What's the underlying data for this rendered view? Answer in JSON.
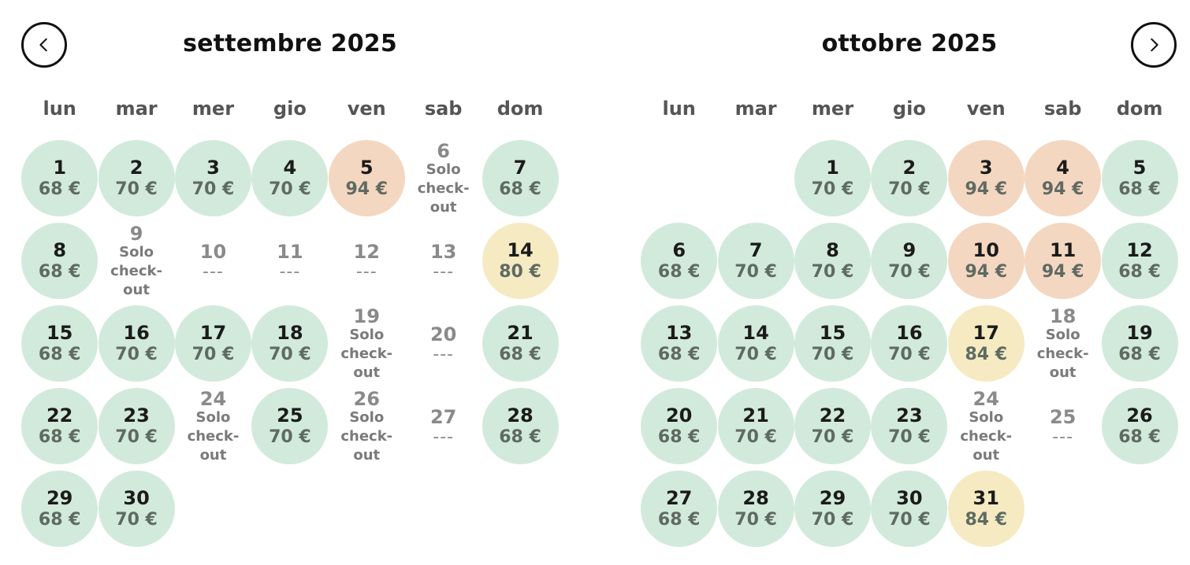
{
  "nav": {
    "prev_icon": "chevron-left-icon",
    "next_icon": "chevron-right-icon"
  },
  "colors": {
    "available": "#d2eadb",
    "high": "#f4d7c0",
    "medium": "#f6eac2"
  },
  "checkout_lines": [
    "Solo",
    "check-",
    "out"
  ],
  "months": [
    {
      "title": "settembre 2025",
      "weekdays": [
        "lun",
        "mar",
        "mer",
        "gio",
        "ven",
        "sab",
        "dom"
      ],
      "offset": 0,
      "days": [
        {
          "d": "1",
          "p": "68 €",
          "s": "green"
        },
        {
          "d": "2",
          "p": "70 €",
          "s": "green"
        },
        {
          "d": "3",
          "p": "70 €",
          "s": "green"
        },
        {
          "d": "4",
          "p": "70 €",
          "s": "green"
        },
        {
          "d": "5",
          "p": "94 €",
          "s": "orange"
        },
        {
          "d": "6",
          "s": "checkout"
        },
        {
          "d": "7",
          "p": "68 €",
          "s": "green"
        },
        {
          "d": "8",
          "p": "68 €",
          "s": "green"
        },
        {
          "d": "9",
          "s": "checkout"
        },
        {
          "d": "10",
          "p": "---",
          "s": "none"
        },
        {
          "d": "11",
          "p": "---",
          "s": "none"
        },
        {
          "d": "12",
          "p": "---",
          "s": "none"
        },
        {
          "d": "13",
          "p": "---",
          "s": "none"
        },
        {
          "d": "14",
          "p": "80 €",
          "s": "yellow"
        },
        {
          "d": "15",
          "p": "68 €",
          "s": "green"
        },
        {
          "d": "16",
          "p": "70 €",
          "s": "green"
        },
        {
          "d": "17",
          "p": "70 €",
          "s": "green"
        },
        {
          "d": "18",
          "p": "70 €",
          "s": "green"
        },
        {
          "d": "19",
          "s": "checkout"
        },
        {
          "d": "20",
          "p": "---",
          "s": "none"
        },
        {
          "d": "21",
          "p": "68 €",
          "s": "green"
        },
        {
          "d": "22",
          "p": "68 €",
          "s": "green"
        },
        {
          "d": "23",
          "p": "70 €",
          "s": "green"
        },
        {
          "d": "24",
          "s": "checkout"
        },
        {
          "d": "25",
          "p": "70 €",
          "s": "green"
        },
        {
          "d": "26",
          "s": "checkout"
        },
        {
          "d": "27",
          "p": "---",
          "s": "none"
        },
        {
          "d": "28",
          "p": "68 €",
          "s": "green"
        },
        {
          "d": "29",
          "p": "68 €",
          "s": "green"
        },
        {
          "d": "30",
          "p": "70 €",
          "s": "green"
        }
      ]
    },
    {
      "title": "ottobre 2025",
      "weekdays": [
        "lun",
        "mar",
        "mer",
        "gio",
        "ven",
        "sab",
        "dom"
      ],
      "offset": 2,
      "days": [
        {
          "d": "1",
          "p": "70 €",
          "s": "green"
        },
        {
          "d": "2",
          "p": "70 €",
          "s": "green"
        },
        {
          "d": "3",
          "p": "94 €",
          "s": "orange"
        },
        {
          "d": "4",
          "p": "94 €",
          "s": "orange"
        },
        {
          "d": "5",
          "p": "68 €",
          "s": "green"
        },
        {
          "d": "6",
          "p": "68 €",
          "s": "green"
        },
        {
          "d": "7",
          "p": "70 €",
          "s": "green"
        },
        {
          "d": "8",
          "p": "70 €",
          "s": "green"
        },
        {
          "d": "9",
          "p": "70 €",
          "s": "green"
        },
        {
          "d": "10",
          "p": "94 €",
          "s": "orange"
        },
        {
          "d": "11",
          "p": "94 €",
          "s": "orange"
        },
        {
          "d": "12",
          "p": "68 €",
          "s": "green"
        },
        {
          "d": "13",
          "p": "68 €",
          "s": "green"
        },
        {
          "d": "14",
          "p": "70 €",
          "s": "green"
        },
        {
          "d": "15",
          "p": "70 €",
          "s": "green"
        },
        {
          "d": "16",
          "p": "70 €",
          "s": "green"
        },
        {
          "d": "17",
          "p": "84 €",
          "s": "yellow"
        },
        {
          "d": "18",
          "s": "checkout"
        },
        {
          "d": "19",
          "p": "68 €",
          "s": "green"
        },
        {
          "d": "20",
          "p": "68 €",
          "s": "green"
        },
        {
          "d": "21",
          "p": "70 €",
          "s": "green"
        },
        {
          "d": "22",
          "p": "70 €",
          "s": "green"
        },
        {
          "d": "23",
          "p": "70 €",
          "s": "green"
        },
        {
          "d": "24",
          "s": "checkout"
        },
        {
          "d": "25",
          "p": "---",
          "s": "none"
        },
        {
          "d": "26",
          "p": "68 €",
          "s": "green"
        },
        {
          "d": "27",
          "p": "68 €",
          "s": "green"
        },
        {
          "d": "28",
          "p": "70 €",
          "s": "green"
        },
        {
          "d": "29",
          "p": "70 €",
          "s": "green"
        },
        {
          "d": "30",
          "p": "70 €",
          "s": "green"
        },
        {
          "d": "31",
          "p": "84 €",
          "s": "yellow"
        }
      ]
    }
  ]
}
